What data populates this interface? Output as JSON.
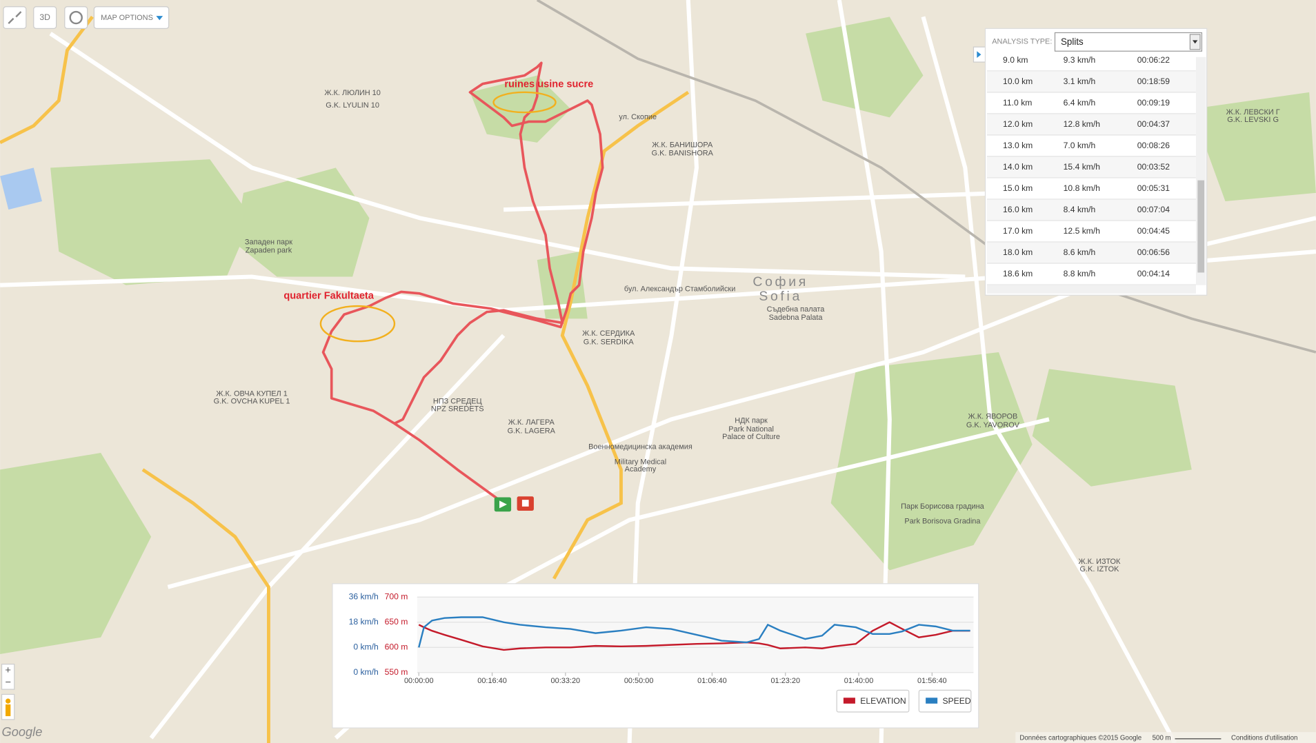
{
  "toolbar": {
    "three_d": "3D",
    "map_options": "MAP OPTIONS"
  },
  "analysis": {
    "label": "ANALYSIS TYPE:",
    "selected": "Splits",
    "rows": [
      [
        "9.0 km",
        "9.3 km/h",
        "00:06:22"
      ],
      [
        "10.0 km",
        "3.1 km/h",
        "00:18:59"
      ],
      [
        "11.0 km",
        "6.4 km/h",
        "00:09:19"
      ],
      [
        "12.0 km",
        "12.8 km/h",
        "00:04:37"
      ],
      [
        "13.0 km",
        "7.0 km/h",
        "00:08:26"
      ],
      [
        "14.0 km",
        "15.4 km/h",
        "00:03:52"
      ],
      [
        "15.0 km",
        "10.8 km/h",
        "00:05:31"
      ],
      [
        "16.0 km",
        "8.4 km/h",
        "00:07:04"
      ],
      [
        "17.0 km",
        "12.5 km/h",
        "00:04:45"
      ],
      [
        "18.0 km",
        "8.6 km/h",
        "00:06:56"
      ],
      [
        "18.6 km",
        "8.8 km/h",
        "00:04:14"
      ]
    ]
  },
  "map": {
    "annotations": [
      "ruines usine sucre",
      "quartier Fakultaeta"
    ],
    "labels": [
      "София",
      "Sofia",
      "Западен парк",
      "Zapaden park",
      "Ж.К. СЕРДИКА",
      "G.K. SERDIKA",
      "НДК парк",
      "Park National",
      "Palace of Culture",
      "Парк Борисова градина",
      "Park Borisova Gradina",
      "Ж.К. ЯВОРОВ",
      "G.K. YAVOROV",
      "Ж.К. ЛАГЕРА",
      "G.K. LAGERA",
      "Ж.К. БАНИШОРА",
      "G.K. BANISHORA",
      "бул. Александър Стамболийски",
      "ул. Скопие",
      "Военномедицинска академия",
      "Military Medical",
      "Academy",
      "Съдебна палата",
      "Sadebna Palata",
      "Ж.К. ОВЧА КУПЕЛ 1",
      "G.K. OVCHA KUPEL 1",
      "НПЗ СРЕДЕЦ",
      "NPZ SREDETS",
      "Ж.К. ЛЮЛИН 10",
      "G.K. LYULIN 10",
      "Ж.К. ЛЕВСКИ Г",
      "G.K. LEVSKI G",
      "Ж.К. ИЗТОК",
      "G.K. IZTOK"
    ],
    "google": "Google",
    "attribution": "Données cartographiques ©2015 Google",
    "scale": "500 m",
    "terms": "Conditions d'utilisation"
  },
  "chart_data": {
    "type": "line",
    "x": [
      0,
      70,
      180,
      350,
      580,
      870,
      1160,
      1380,
      1730,
      2070,
      2410,
      2760,
      3100,
      3440,
      3790,
      4130,
      4470,
      4640,
      4760,
      4930,
      5270,
      5500,
      5670,
      5960,
      6190,
      6420,
      6590,
      6820,
      7050,
      7280,
      7520
    ],
    "series": [
      {
        "name": "ELEVATION",
        "color": "#c41a2a",
        "axis": "y2",
        "values": [
          645,
          640,
          633,
          625,
          615,
          602,
          595,
          598,
          600,
          600,
          603,
          602,
          603,
          605,
          607,
          608,
          610,
          608,
          605,
          598,
          600,
          598,
          602,
          607,
          633,
          650,
          637,
          620,
          625,
          633,
          633
        ]
      },
      {
        "name": "SPEED",
        "color": "#2a7fc1",
        "values": [
          0,
          14.4,
          19.2,
          21,
          21.6,
          21.6,
          18,
          16.2,
          14.4,
          13.2,
          10.2,
          12,
          14.4,
          13.2,
          9,
          4.8,
          3.6,
          6,
          16.2,
          12,
          6,
          8.4,
          16.2,
          14.4,
          9.6,
          9.6,
          11.4,
          16.2,
          15,
          12,
          12
        ]
      }
    ],
    "xlim": [
      0,
      7520
    ],
    "xticks": [
      {
        "value": 0,
        "label": "00:00:00"
      },
      {
        "value": 1000,
        "label": "00:16:40"
      },
      {
        "value": 2000,
        "label": "00:33:20"
      },
      {
        "value": 3000,
        "label": "00:50:00"
      },
      {
        "value": 4000,
        "label": "01:06:40"
      },
      {
        "value": 5000,
        "label": "01:23:20"
      },
      {
        "value": 6000,
        "label": "01:40:00"
      },
      {
        "value": 7000,
        "label": "01:56:40"
      }
    ],
    "ylim": [
      -18,
      36
    ],
    "yticks": [
      {
        "value": 0,
        "label": "0 km/h"
      },
      {
        "value": 18,
        "label": "18 km/h"
      },
      {
        "value": 36,
        "label": "36 km/h"
      }
    ],
    "axis_bottom_label": "0 km/h",
    "y2lim": [
      550,
      700
    ],
    "y2ticks": [
      {
        "value": 550,
        "label": "550 m"
      },
      {
        "value": 600,
        "label": "600 m"
      },
      {
        "value": 650,
        "label": "650 m"
      },
      {
        "value": 700,
        "label": "700 m"
      }
    ],
    "grid": true
  }
}
